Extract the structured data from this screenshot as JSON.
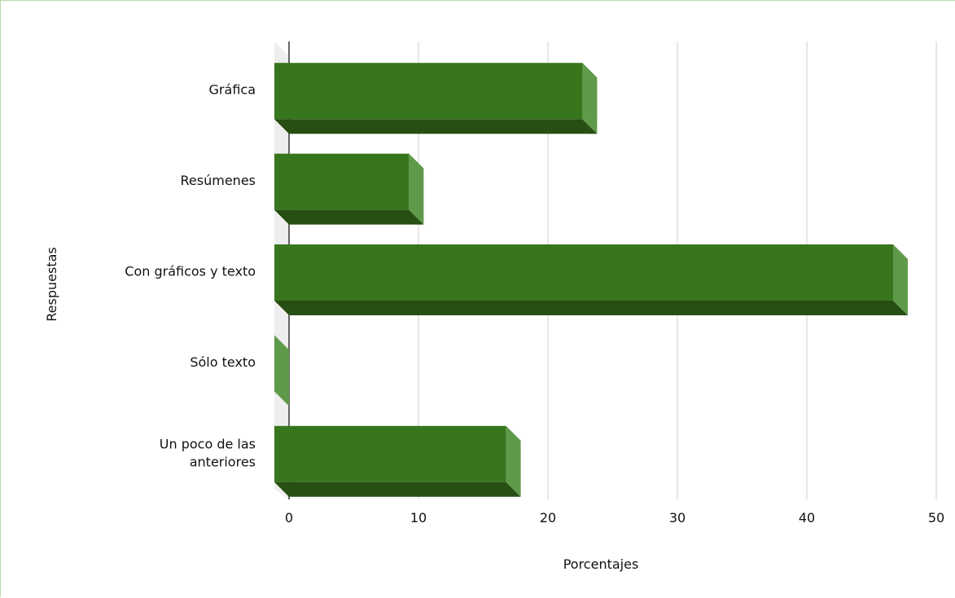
{
  "chart_data": {
    "type": "bar",
    "orientation": "horizontal",
    "style": "3d",
    "categories": [
      "Gráfica",
      "Resúmenes",
      "Con gráficos y texto",
      "Sólo texto",
      "Un poco de las anteriores"
    ],
    "category_lines": [
      [
        "Gráfica"
      ],
      [
        "Resúmenes"
      ],
      [
        "Con gráficos y texto"
      ],
      [
        "Sólo texto"
      ],
      [
        "Un poco de las",
        "anteriores"
      ]
    ],
    "values": [
      23.8,
      10.4,
      47.8,
      0,
      17.9
    ],
    "xlabel": "Porcentajes",
    "ylabel": "Respuestas",
    "xlim": [
      0,
      50
    ],
    "xticks": [
      0,
      10,
      20,
      30,
      40,
      50
    ],
    "grid": true,
    "legend": "none",
    "colors": {
      "bar_front": "#38761d",
      "bar_top": "#5e9a4a",
      "bar_side": "#274e13",
      "wall": "#eeeeee",
      "grid": "#cccccc",
      "axis": "#333333",
      "frame": "#b9d9a8"
    }
  }
}
